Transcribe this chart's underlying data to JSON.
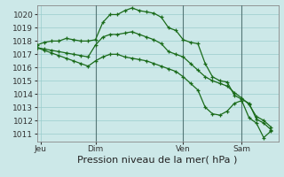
{
  "background_color": "#cce8e8",
  "grid_color": "#99cccc",
  "line_color": "#1a6b1a",
  "title": "Pression niveau de la mer( hPa )",
  "x_ticks_labels": [
    "Jeu",
    "Dim",
    "Ven",
    "Sam"
  ],
  "x_ticks_pos": [
    0.5,
    8,
    20,
    28
  ],
  "ylim": [
    1010.4,
    1020.7
  ],
  "xlim": [
    0,
    33
  ],
  "yticks": [
    1011,
    1012,
    1013,
    1014,
    1015,
    1016,
    1017,
    1018,
    1019,
    1020
  ],
  "vlines_x": [
    8,
    20,
    28
  ],
  "series": {
    "xs": [
      0,
      1,
      2,
      3,
      4,
      5,
      6,
      7,
      8,
      9,
      10,
      11,
      12,
      13,
      14,
      15,
      16,
      17,
      18,
      19,
      20,
      21,
      22,
      23,
      24,
      25,
      26,
      27,
      28,
      29,
      30,
      31,
      32
    ],
    "line1": [
      1017.7,
      1017.9,
      1018.0,
      1018.0,
      1018.2,
      1018.1,
      1018.0,
      1018.0,
      1018.1,
      1019.4,
      1020.0,
      1020.0,
      1020.3,
      1020.5,
      1020.3,
      1020.2,
      1020.1,
      1019.8,
      1019.0,
      1018.8,
      1018.1,
      1017.9,
      1017.8,
      1016.3,
      1015.3,
      1015.0,
      1014.9,
      1013.9,
      1013.6,
      1013.3,
      1012.1,
      1011.8,
      1011.3
    ],
    "line2": [
      1017.5,
      1017.4,
      1017.3,
      1017.2,
      1017.1,
      1017.0,
      1016.9,
      1016.8,
      1017.7,
      1018.3,
      1018.5,
      1018.5,
      1018.6,
      1018.7,
      1018.5,
      1018.3,
      1018.1,
      1017.8,
      1017.2,
      1017.0,
      1016.8,
      1016.3,
      1015.8,
      1015.3,
      1015.0,
      1014.8,
      1014.6,
      1014.1,
      1013.7,
      1013.2,
      1012.3,
      1012.0,
      1011.5
    ],
    "line3": [
      1017.5,
      1017.3,
      1017.1,
      1016.9,
      1016.7,
      1016.5,
      1016.3,
      1016.1,
      1016.5,
      1016.8,
      1017.0,
      1017.0,
      1016.8,
      1016.7,
      1016.6,
      1016.5,
      1016.3,
      1016.1,
      1015.9,
      1015.7,
      1015.3,
      1014.8,
      1014.3,
      1013.0,
      1012.5,
      1012.4,
      1012.7,
      1013.3,
      1013.5,
      1012.2,
      1011.8,
      1010.7,
      1011.2
    ]
  },
  "ylabel_fontsize": 6.5,
  "xlabel_fontsize": 8.0,
  "tick_fontsize": 6.5
}
